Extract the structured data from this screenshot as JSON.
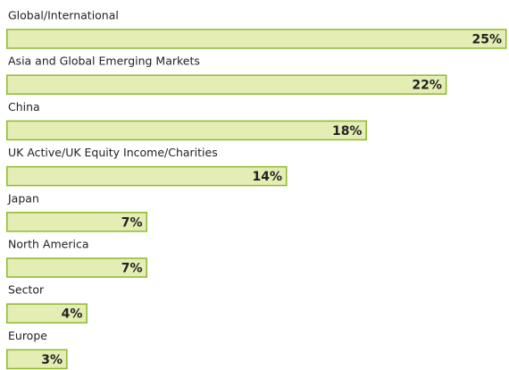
{
  "chart_data": {
    "type": "bar",
    "orientation": "horizontal",
    "categories": [
      "Global/International",
      "Asia and Global Emerging Markets",
      "China",
      "UK Active/UK Equity Income/Charities",
      "Japan",
      "North America",
      "Sector",
      "Europe"
    ],
    "values": [
      25,
      22,
      18,
      14,
      7,
      7,
      4,
      3
    ],
    "value_labels": [
      "25%",
      "22%",
      "18%",
      "14%",
      "7%",
      "7%",
      "4%",
      "3%"
    ],
    "color": "#e4edb4",
    "edge_color": "#8fb832"
  }
}
